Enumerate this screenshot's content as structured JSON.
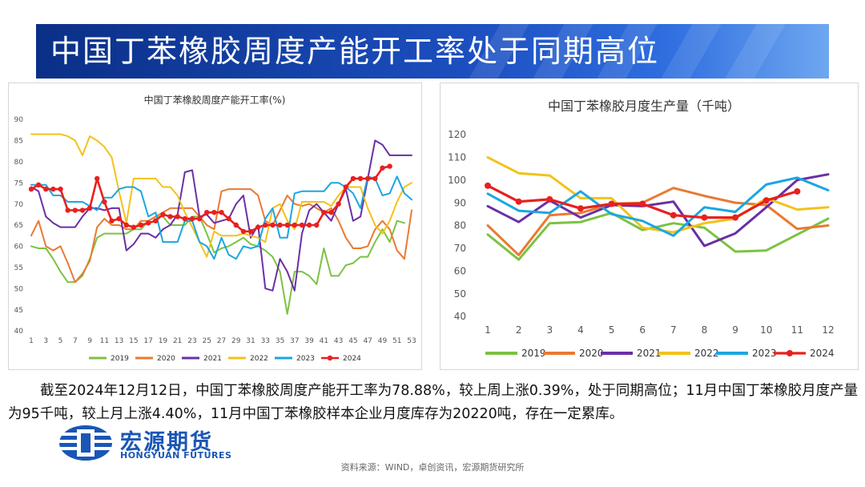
{
  "header": {
    "title": "中国丁苯橡胶周度产能开工率处于同期高位"
  },
  "chart_data": [
    {
      "type": "line",
      "title": "中国丁苯橡胶周度产能开工率(%)",
      "xlabel": "",
      "ylabel": "",
      "ylim": [
        40,
        90
      ],
      "yticks": [
        40,
        45,
        50,
        55,
        60,
        65,
        70,
        75,
        80,
        85,
        90
      ],
      "x": [
        1,
        2,
        3,
        4,
        5,
        6,
        7,
        8,
        9,
        10,
        11,
        12,
        13,
        14,
        15,
        16,
        17,
        18,
        19,
        20,
        21,
        22,
        23,
        24,
        25,
        26,
        27,
        28,
        29,
        30,
        31,
        32,
        33,
        34,
        35,
        36,
        37,
        38,
        39,
        40,
        41,
        42,
        43,
        44,
        45,
        46,
        47,
        48,
        49,
        50,
        51,
        52,
        53
      ],
      "xticks": [
        1,
        3,
        5,
        7,
        9,
        11,
        13,
        15,
        17,
        19,
        21,
        23,
        25,
        27,
        29,
        31,
        33,
        35,
        37,
        39,
        41,
        43,
        45,
        47,
        49,
        51,
        53
      ],
      "grid": false,
      "legend_position": "bottom",
      "series": [
        {
          "name": "2019",
          "color": "#7cc242",
          "values": [
            60,
            59.5,
            59.5,
            57,
            54,
            51.5,
            51.5,
            53,
            57,
            62,
            63,
            63,
            63,
            63,
            64,
            64,
            66,
            67,
            67,
            65,
            65,
            65,
            67,
            67,
            63,
            58.5,
            59.5,
            60,
            61,
            62,
            60.5,
            60,
            59,
            57.5,
            54,
            44,
            54,
            54,
            53,
            51,
            59.5,
            53,
            53,
            55.5,
            56,
            57.5,
            57.5,
            61,
            64,
            61,
            66,
            65.5,
            null
          ]
        },
        {
          "name": "2020",
          "color": "#e97a32",
          "values": [
            62.5,
            66,
            60,
            59,
            60,
            56,
            51.5,
            53.5,
            56.5,
            64.5,
            66.5,
            65,
            65,
            64,
            64,
            66,
            66,
            67,
            68,
            69,
            69,
            69,
            69,
            67,
            65,
            64,
            73,
            73.5,
            73.5,
            73.5,
            73.5,
            72,
            66,
            65,
            68.5,
            72,
            70,
            69.5,
            70,
            69,
            68,
            69,
            66,
            62,
            59.5,
            59.5,
            60,
            64,
            66,
            64,
            59,
            57,
            68.5
          ]
        },
        {
          "name": "2021",
          "color": "#6a2fa6",
          "values": [
            74,
            73,
            67,
            65.5,
            64.5,
            64.5,
            64.5,
            67,
            69,
            69,
            68.5,
            69,
            69,
            59,
            60.5,
            63,
            63,
            62,
            64,
            65,
            67.5,
            77.5,
            78,
            67,
            67.5,
            65.5,
            66,
            66.5,
            70,
            72,
            62,
            65,
            50,
            49.5,
            57,
            54,
            49.5,
            63,
            68.5,
            70,
            68,
            66,
            70,
            73.5,
            66,
            67,
            76,
            85,
            84,
            81.5,
            81.5,
            81.5,
            81.5
          ]
        },
        {
          "name": "2022",
          "color": "#f2c21a",
          "values": [
            86.5,
            86.5,
            86.5,
            86.5,
            86.5,
            86,
            85,
            81.5,
            86,
            85,
            83.5,
            81,
            73,
            65.5,
            76,
            76,
            76,
            76,
            74,
            74,
            72,
            68,
            64.5,
            61,
            57.5,
            63.5,
            62.5,
            62.5,
            62.5,
            63,
            62.5,
            62,
            61,
            69,
            70,
            66,
            64,
            70.5,
            70.5,
            70.5,
            70.5,
            69.5,
            72,
            74,
            74,
            74,
            69,
            65,
            63,
            66,
            70.5,
            74,
            75
          ]
        },
        {
          "name": "2023",
          "color": "#1aa7e0",
          "values": [
            74.5,
            74.5,
            74.5,
            72,
            72,
            70.5,
            70.5,
            70.5,
            69.5,
            68.5,
            71.5,
            71.5,
            73.5,
            74,
            74,
            73,
            67,
            68,
            61,
            61,
            61,
            66,
            66,
            61,
            60,
            57,
            62,
            58,
            57,
            60,
            59.5,
            60,
            66.5,
            69,
            62,
            62,
            72.5,
            73,
            73,
            73,
            73,
            75,
            75,
            74,
            72.5,
            69,
            76.5,
            76,
            72,
            72.5,
            76.5,
            72.5,
            71
          ]
        },
        {
          "name": "2024",
          "color": "#e8201f",
          "values": [
            73.5,
            74.5,
            73.5,
            73.5,
            73.5,
            68.5,
            68.5,
            68.5,
            69,
            76,
            70.5,
            66,
            66.5,
            65,
            64.5,
            65,
            65.5,
            66,
            67.5,
            67,
            67,
            66.5,
            66.5,
            66.5,
            68,
            68,
            68,
            66.5,
            65,
            63.5,
            63.5,
            64.5,
            65,
            65,
            65,
            65,
            65,
            65,
            65,
            65,
            68,
            68,
            70,
            74,
            76,
            76,
            76,
            76,
            78.5,
            78.9,
            null,
            null,
            null
          ]
        }
      ]
    },
    {
      "type": "line",
      "title": "中国丁苯橡胶月度生产量（千吨）",
      "xlabel": "",
      "ylabel": "",
      "ylim": [
        40,
        120
      ],
      "yticks": [
        40,
        50,
        60,
        70,
        80,
        90,
        100,
        110,
        120
      ],
      "categories": [
        "1",
        "2",
        "3",
        "4",
        "5",
        "6",
        "7",
        "8",
        "9",
        "10",
        "11",
        "12"
      ],
      "grid": false,
      "legend_position": "bottom",
      "series": [
        {
          "name": "2019",
          "color": "#7cc242",
          "values": [
            76,
            65,
            81,
            81.5,
            85.5,
            78,
            81,
            79,
            68.5,
            69,
            76,
            83
          ]
        },
        {
          "name": "2020",
          "color": "#e97a32",
          "values": [
            80,
            67,
            84.5,
            85.5,
            89.5,
            90,
            96.5,
            93,
            90,
            89,
            78.5,
            80
          ]
        },
        {
          "name": "2021",
          "color": "#6a2fa6",
          "values": [
            88.5,
            81.5,
            91,
            83.5,
            89,
            88.5,
            90.5,
            71,
            76.5,
            88,
            100,
            102.5
          ]
        },
        {
          "name": "2022",
          "color": "#f2c21a",
          "values": [
            110,
            103,
            102,
            92,
            92,
            79,
            77,
            81,
            83,
            92,
            87,
            88
          ]
        },
        {
          "name": "2023",
          "color": "#1aa7e0",
          "values": [
            94,
            86.5,
            85.5,
            95,
            85,
            82,
            75.5,
            88,
            86,
            98,
            101,
            95.5
          ]
        },
        {
          "name": "2024",
          "color": "#e8201f",
          "values": [
            97.5,
            90.5,
            91.5,
            87.5,
            89.5,
            89.5,
            84.5,
            83.5,
            83.5,
            91,
            95,
            null
          ]
        }
      ]
    }
  ],
  "summary": "截至2024年12月12日，中国丁苯橡胶周度产能开工率为78.88%，较上周上涨0.39%，处于同期高位；11月中国丁苯橡胶月度产量为95千吨，较上月上涨4.40%，11月中国丁苯橡胶样本企业月度库存为20220吨，存在一定累库。",
  "logo": {
    "name_cn": "宏源期货",
    "name_en": "HONGYUAN FUTURES"
  },
  "source": "资料来源：WIND，卓创资讯，宏源期货研究所"
}
